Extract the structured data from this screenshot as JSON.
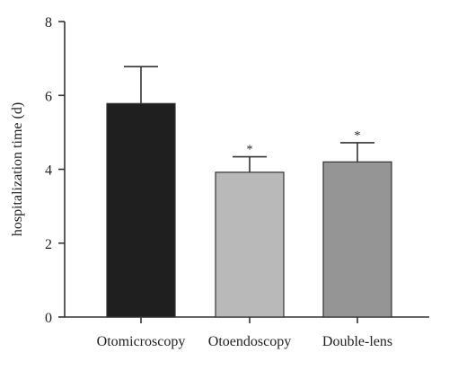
{
  "chart_data": {
    "type": "bar",
    "title": "",
    "xlabel": "",
    "ylabel": "hospitalization time (d)",
    "ylim": [
      0,
      8
    ],
    "yticks": [
      0,
      2,
      4,
      6,
      8
    ],
    "grid": false,
    "categories": [
      "Otomicroscopy",
      "Otoendoscopy",
      "Double-lens"
    ],
    "values": [
      5.78,
      3.92,
      4.2
    ],
    "error_upper": [
      1.0,
      0.42,
      0.52
    ],
    "annotations": [
      "",
      "*",
      "*"
    ],
    "colors": [
      "#1f1f1f",
      "#b9b9b9",
      "#959595"
    ]
  }
}
